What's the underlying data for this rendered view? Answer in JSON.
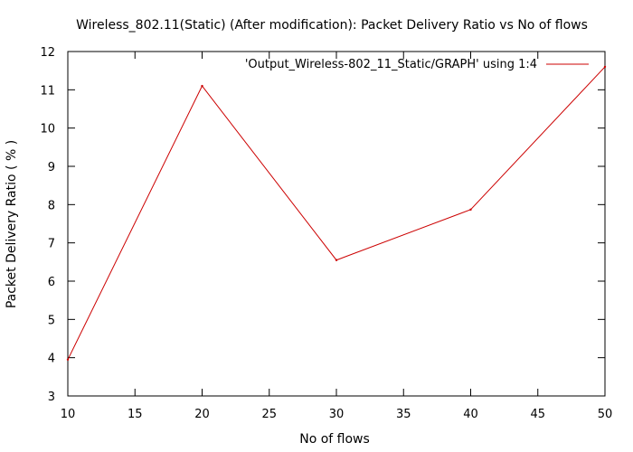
{
  "chart_data": {
    "type": "line",
    "title": "Wireless_802.11(Static) (After modification): Packet Delivery Ratio vs No of flows",
    "xlabel": "No of flows",
    "ylabel": "Packet Delivery Ratio ( % )",
    "xlim": [
      10,
      50
    ],
    "ylim": [
      3,
      12
    ],
    "x_ticks": [
      10,
      15,
      20,
      25,
      30,
      35,
      40,
      45,
      50
    ],
    "y_ticks": [
      3,
      4,
      5,
      6,
      7,
      8,
      9,
      10,
      11,
      12
    ],
    "grid": false,
    "legend_position": "top-right",
    "series": [
      {
        "name": "'Output_Wireless-802_11_Static/GRAPH' using 1:4",
        "color": "#cc0000",
        "x": [
          10,
          20,
          30,
          40,
          50
        ],
        "values": [
          3.95,
          11.1,
          6.55,
          7.87,
          11.6
        ]
      }
    ]
  }
}
